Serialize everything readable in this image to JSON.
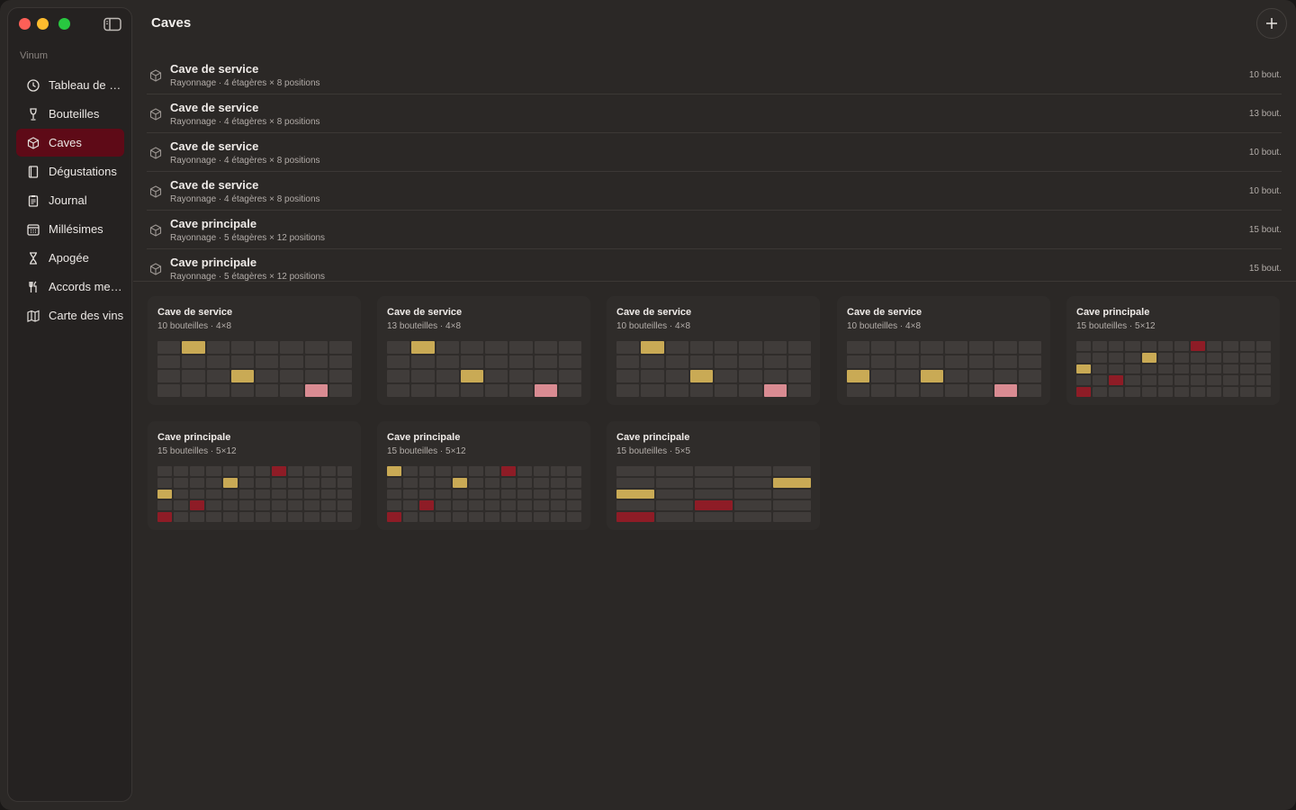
{
  "window": {
    "title": "Caves",
    "add_icon": "plus-icon"
  },
  "sidebar": {
    "section": "Vinum",
    "items": [
      {
        "label": "Tableau de bord",
        "icon": "clock-icon",
        "active": false
      },
      {
        "label": "Bouteilles",
        "icon": "wine-glass-icon",
        "active": false
      },
      {
        "label": "Caves",
        "icon": "cube-icon",
        "active": true
      },
      {
        "label": "Dégustations",
        "icon": "book-icon",
        "active": false
      },
      {
        "label": "Journal",
        "icon": "clipboard-icon",
        "active": false
      },
      {
        "label": "Millésimes",
        "icon": "calendar-icon",
        "active": false
      },
      {
        "label": "Apogée",
        "icon": "hourglass-icon",
        "active": false
      },
      {
        "label": "Accords mets-vins",
        "icon": "fork-knife-icon",
        "active": false
      },
      {
        "label": "Carte des vins",
        "icon": "map-icon",
        "active": false
      }
    ]
  },
  "list": [
    {
      "name": "Cave de service",
      "sub": "Rayonnage · 4 étagères × 8 positions",
      "count": "10 bout."
    },
    {
      "name": "Cave de service",
      "sub": "Rayonnage · 4 étagères × 8 positions",
      "count": "13 bout."
    },
    {
      "name": "Cave de service",
      "sub": "Rayonnage · 4 étagères × 8 positions",
      "count": "10 bout."
    },
    {
      "name": "Cave de service",
      "sub": "Rayonnage · 4 étagères × 8 positions",
      "count": "10 bout."
    },
    {
      "name": "Cave principale",
      "sub": "Rayonnage · 5 étagères × 12 positions",
      "count": "15 bout."
    },
    {
      "name": "Cave principale",
      "sub": "Rayonnage · 5 étagères × 12 positions",
      "count": "15 bout."
    }
  ],
  "cards": [
    {
      "name": "Cave de service",
      "sub": "10 bouteilles · 4×8",
      "rows": 4,
      "cols": 8,
      "filled": [
        {
          "r": 0,
          "c": 1,
          "t": "g"
        },
        {
          "r": 2,
          "c": 3,
          "t": "g"
        },
        {
          "r": 3,
          "c": 6,
          "t": "p"
        }
      ]
    },
    {
      "name": "Cave de service",
      "sub": "13 bouteilles · 4×8",
      "rows": 4,
      "cols": 8,
      "filled": [
        {
          "r": 0,
          "c": 1,
          "t": "g"
        },
        {
          "r": 2,
          "c": 3,
          "t": "g"
        },
        {
          "r": 3,
          "c": 6,
          "t": "p"
        }
      ]
    },
    {
      "name": "Cave de service",
      "sub": "10 bouteilles · 4×8",
      "rows": 4,
      "cols": 8,
      "filled": [
        {
          "r": 0,
          "c": 1,
          "t": "g"
        },
        {
          "r": 2,
          "c": 3,
          "t": "g"
        },
        {
          "r": 3,
          "c": 6,
          "t": "p"
        }
      ]
    },
    {
      "name": "Cave de service",
      "sub": "10 bouteilles · 4×8",
      "rows": 4,
      "cols": 8,
      "filled": [
        {
          "r": 2,
          "c": 0,
          "t": "g"
        },
        {
          "r": 2,
          "c": 3,
          "t": "g"
        },
        {
          "r": 3,
          "c": 6,
          "t": "p"
        }
      ]
    },
    {
      "name": "Cave principale",
      "sub": "15 bouteilles · 5×12",
      "rows": 5,
      "cols": 12,
      "filled": [
        {
          "r": 0,
          "c": 7,
          "t": "r"
        },
        {
          "r": 1,
          "c": 4,
          "t": "g"
        },
        {
          "r": 2,
          "c": 0,
          "t": "g"
        },
        {
          "r": 3,
          "c": 2,
          "t": "r"
        },
        {
          "r": 4,
          "c": 0,
          "t": "r"
        }
      ]
    },
    {
      "name": "Cave principale",
      "sub": "15 bouteilles · 5×12",
      "rows": 5,
      "cols": 12,
      "filled": [
        {
          "r": 0,
          "c": 7,
          "t": "r"
        },
        {
          "r": 1,
          "c": 4,
          "t": "g"
        },
        {
          "r": 2,
          "c": 0,
          "t": "g"
        },
        {
          "r": 3,
          "c": 2,
          "t": "r"
        },
        {
          "r": 4,
          "c": 0,
          "t": "r"
        }
      ]
    },
    {
      "name": "Cave principale",
      "sub": "15 bouteilles · 5×12",
      "rows": 5,
      "cols": 12,
      "filled": [
        {
          "r": 0,
          "c": 0,
          "t": "g"
        },
        {
          "r": 0,
          "c": 7,
          "t": "r"
        },
        {
          "r": 1,
          "c": 4,
          "t": "g"
        },
        {
          "r": 3,
          "c": 2,
          "t": "r"
        },
        {
          "r": 4,
          "c": 0,
          "t": "r"
        }
      ]
    },
    {
      "name": "Cave principale",
      "sub": "15 bouteilles · 5×5",
      "rows": 5,
      "cols": 5,
      "filled": [
        {
          "r": 1,
          "c": 4,
          "t": "g"
        },
        {
          "r": 2,
          "c": 0,
          "t": "g"
        },
        {
          "r": 3,
          "c": 2,
          "t": "r"
        },
        {
          "r": 4,
          "c": 0,
          "t": "r"
        }
      ]
    }
  ]
}
